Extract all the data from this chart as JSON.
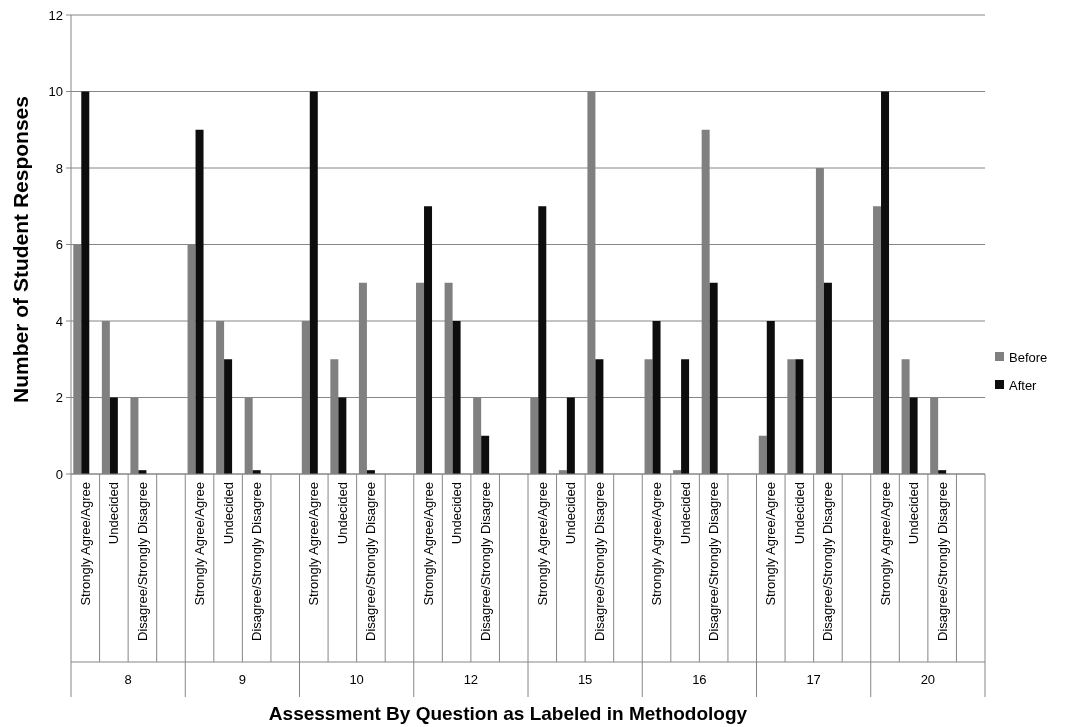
{
  "chart_data": {
    "type": "bar",
    "xlabel": "Assessment By Question as Labeled in Methodology",
    "ylabel": "Number of Student Responses",
    "categories": [
      "Strongly Agree/Agree",
      "Undecided",
      "Disagree/Strongly Disagree",
      null,
      "Strongly Agree/Agree",
      "Undecided",
      "Disagree/Strongly Disagree",
      null,
      "Strongly Agree/Agree",
      "Undecided",
      "Disagree/Strongly Disagree",
      null,
      "Strongly Agree/Agree",
      "Undecided",
      "Disagree/Strongly Disagree",
      null,
      "Strongly Agree/Agree",
      "Undecided",
      "Disagree/Strongly Disagree",
      null,
      "Strongly Agree/Agree",
      "Undecided",
      "Disagree/Strongly Disagree",
      null,
      "Strongly Agree/Agree",
      "Undecided",
      "Disagree/Strongly Disagree",
      null,
      "Strongly Agree/Agree",
      "Undecided",
      "Disagree/Strongly Disagree",
      null
    ],
    "series": [
      {
        "name": "Before",
        "color": "#808080",
        "values": [
          6,
          4,
          2,
          null,
          6,
          4,
          2,
          null,
          4,
          3,
          5,
          null,
          5,
          5,
          2,
          null,
          2,
          0.1,
          10,
          null,
          3,
          0.1,
          9,
          null,
          1,
          3,
          8,
          null,
          7,
          3,
          2,
          null
        ]
      },
      {
        "name": "After",
        "color": "#0d0d0d",
        "values": [
          10,
          2,
          0.1,
          null,
          9,
          3,
          0.1,
          null,
          10,
          2,
          0.1,
          null,
          7,
          4,
          1,
          null,
          7,
          2,
          3,
          null,
          4,
          3,
          5,
          null,
          4,
          3,
          5,
          null,
          10,
          2,
          0.1,
          null
        ]
      }
    ],
    "annotations": [
      "8",
      "9",
      "10",
      "12",
      "15",
      "16",
      "17",
      "20"
    ],
    "ylim": [
      0,
      12
    ],
    "yticks": [
      0,
      2,
      4,
      6,
      8,
      10,
      12
    ],
    "grid": "y",
    "legend": "right"
  }
}
